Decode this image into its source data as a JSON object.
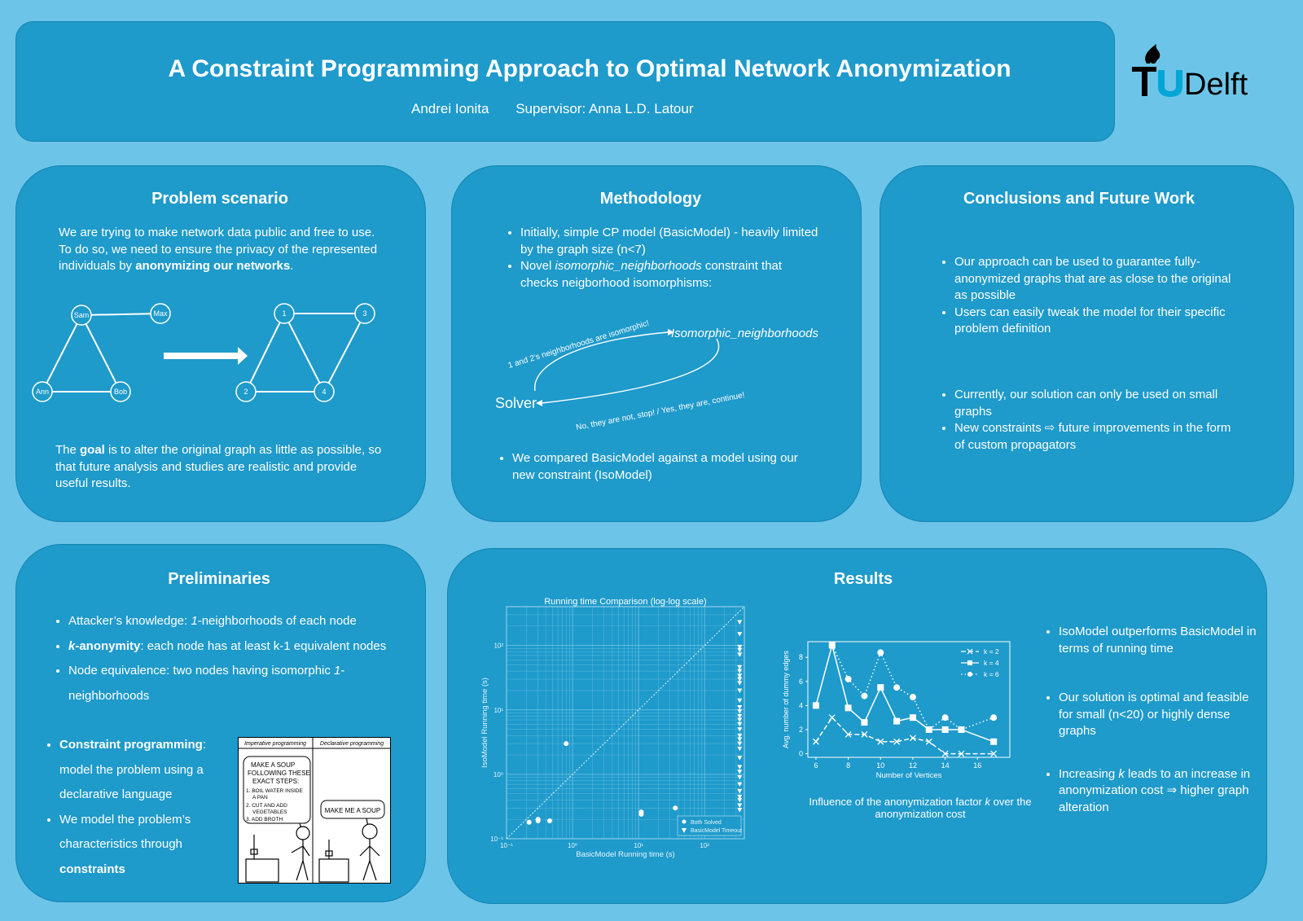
{
  "header": {
    "title": "A Constraint Programming Approach to Optimal Network Anonymization",
    "author": "Andrei Ionita",
    "supervisor": "Supervisor: Anna L.D. Latour",
    "logo_text": "TUDelft"
  },
  "problem": {
    "heading": "Problem scenario",
    "intro_pre": "We are trying to make network data public and free to use. To do so, we need to ensure the privacy of the represented individuals by ",
    "intro_bold": "anonymizing our networks",
    "intro_post": ".",
    "graph_left_nodes": [
      "Sam",
      "Max",
      "Ann",
      "Bob"
    ],
    "graph_right_nodes": [
      "1",
      "3",
      "2",
      "4"
    ],
    "goal_pre": "The ",
    "goal_bold": "goal",
    "goal_post": " is to alter the original graph as little as possible, so that future analysis and studies are realistic and provide useful results."
  },
  "methodology": {
    "heading": "Methodology",
    "b1": "Initially, simple CP model (BasicModel) - heavily limited by the graph size (n<7)",
    "b2_pre": "Novel ",
    "b2_ital": "isomorphic_neighborhoods",
    "b2_post": " constraint that checks neigborhood isomorphisms:",
    "diag_top": "1 and 2's neighborhoods are isomorphic!",
    "diag_right": "Isomorphic_neighborhoods",
    "diag_solver": "Solver",
    "diag_bottom": "No, they are not, stop! / Yes, they are, continue!",
    "b3": "We compared BasicModel against a model using our new constraint (IsoModel)"
  },
  "conclusions": {
    "heading": "Conclusions and Future Work",
    "b1": "Our approach can be used to guarantee fully-anonymized graphs that are as close to the original as possible",
    "b2": "Users can easily tweak the model for their specific problem definition",
    "b3": "Currently, our solution can only be used on small graphs",
    "b4": " New constraints ⇨ future improvements in the form of custom propagators"
  },
  "preliminaries": {
    "heading": "Preliminaries",
    "b1_pre": "Attacker’s knowledge: ",
    "b1_ital": "1",
    "b1_post": "-neighborhoods of each node",
    "b2_bold": "k",
    "b2_bold2": "-anonymity",
    "b2_post": ": each node has at least k-1 equivalent nodes",
    "b3_pre": "Node equivalence: two nodes having isomorphic ",
    "b3_ital": "1",
    "b3_post": "-neighborhoods",
    "b4_bold": "Constraint programming",
    "b4_post": ": model the problem using a declarative language",
    "b5_pre": "We model the problem’s characteristics through ",
    "b5_bold": "constraints",
    "comic": {
      "col1": "Imperative programming",
      "col2": "Declarative programming",
      "bubble1": [
        "MAKE A SOUP",
        "FOLLOWING THESE",
        "EXACT STEPS:",
        "1. BOIL WATER INSIDE",
        "A PAN",
        "2. CUT AND ADD",
        "VEGETABLES",
        "3. ADD BROTH"
      ],
      "bubble2": "MAKE ME A SOUP"
    }
  },
  "results": {
    "heading": "Results",
    "b1": "IsoModel outperforms BasicModel in terms of running time",
    "b2": "Our solution is optimal and feasible for small (n<20) or highly dense graphs",
    "b3_pre": "Increasing ",
    "b3_ital": "k",
    "b3_post": " leads to an increase in anonymization cost ⇒ higher graph alteration",
    "caption_pre": "Influence of the anonymization factor ",
    "caption_ital": "k",
    "caption_post": " over the anonymization cost"
  },
  "chart_data": [
    {
      "type": "scatter",
      "title": "Running time Comparison (log-log scale)",
      "xlabel": "BasicModel Running time (s)",
      "ylabel": "IsoModel Running time (s)",
      "scale": "log",
      "xlim": [
        0.1,
        400
      ],
      "ylim": [
        0.1,
        400
      ],
      "xticks": [
        "10⁻¹",
        "10⁰",
        "10¹",
        "10²"
      ],
      "yticks": [
        "10⁻¹",
        "10⁰",
        "10¹",
        "10²"
      ],
      "diagonal": true,
      "grid": true,
      "legend_position": "bottom-right",
      "series": [
        {
          "name": "Both Solved",
          "marker": "circle",
          "points": [
            [
              0.22,
              0.18
            ],
            [
              0.3,
              0.19
            ],
            [
              0.3,
              0.2
            ],
            [
              0.45,
              0.19
            ],
            [
              0.8,
              3.0
            ],
            [
              11,
              0.26
            ],
            [
              11,
              0.24
            ],
            [
              36,
              0.3
            ]
          ]
        },
        {
          "name": "BasicModel Timeout",
          "marker": "triangle",
          "x": 340,
          "y": [
            230,
            150,
            95,
            85,
            72,
            46,
            40,
            34,
            30,
            26,
            20,
            14,
            11,
            9.5,
            8,
            7,
            6,
            5,
            4,
            3.5,
            3,
            2.5,
            1.8,
            1.3,
            1.1,
            0.9,
            0.7,
            0.55,
            0.45,
            0.4,
            0.33,
            0.28
          ]
        }
      ]
    },
    {
      "type": "line",
      "xlabel": "Number of Vertices",
      "ylabel": "Avg. number of dummy edges",
      "xlim": [
        5.5,
        18
      ],
      "ylim": [
        -0.3,
        9.3
      ],
      "xticks": [
        6,
        8,
        10,
        12,
        14,
        16
      ],
      "yticks": [
        0,
        2,
        4,
        6,
        8
      ],
      "legend_position": "top-right",
      "x": [
        6,
        7,
        8,
        9,
        10,
        11,
        12,
        13,
        14,
        15,
        17
      ],
      "series": [
        {
          "name": "k = 2",
          "marker": "x",
          "dash": "dashed",
          "values": [
            1,
            3,
            1.6,
            1.6,
            1,
            1,
            1.3,
            1,
            0,
            0,
            0
          ]
        },
        {
          "name": "k = 4",
          "marker": "square",
          "dash": "solid",
          "values": [
            4,
            9,
            3.8,
            2.6,
            5.5,
            2.7,
            3,
            2,
            2,
            2,
            1
          ]
        },
        {
          "name": "k = 6",
          "marker": "circle",
          "dash": "dotted",
          "values": [
            null,
            9,
            6.2,
            4.8,
            8.4,
            5.5,
            4.7,
            2,
            3,
            2,
            3
          ]
        }
      ]
    }
  ]
}
